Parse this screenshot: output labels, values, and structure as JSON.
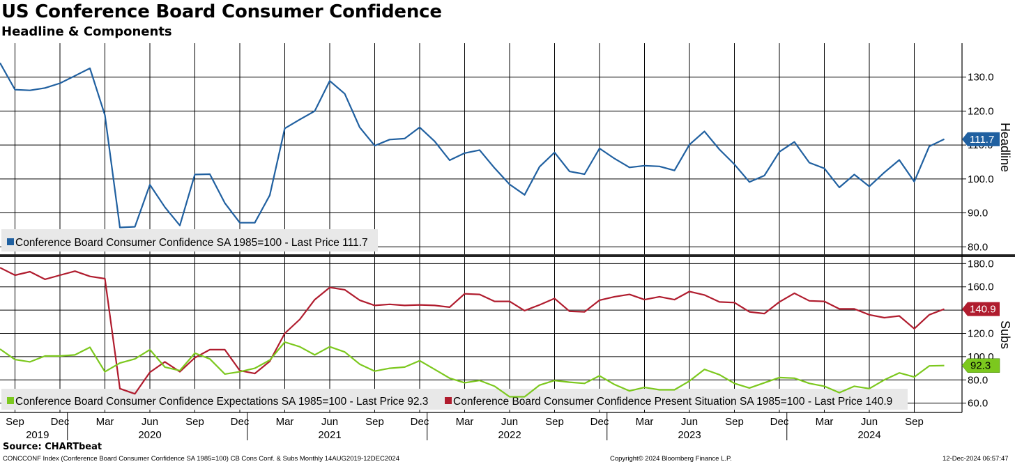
{
  "header": {
    "title": "US Conference Board Consumer Confidence",
    "subtitle": "Headline & Components"
  },
  "footer": {
    "source": "Source: CHARTbeat",
    "index_info": "CONCCONF Index (Conference Board Consumer Confidence SA 1985=100) CB Cons Conf. & Subs  Monthly 14AUG2019-12DEC2024",
    "copyright": "Copyright© 2024 Bloomberg Finance L.P.",
    "timestamp": "12-Dec-2024 06:57:47"
  },
  "colors": {
    "headline": "#2060a0",
    "present": "#b01c2e",
    "expectations": "#7cc81e",
    "grid": "#000000",
    "legend_bg": "#e8e8e8"
  },
  "chart_data": [
    {
      "type": "line",
      "panel": "top",
      "axis_title": "Headline",
      "ylim": [
        78,
        140
      ],
      "yticks": [
        80,
        90,
        100,
        110,
        120,
        130
      ],
      "ytick_labels": [
        "80.0",
        "90.0",
        "100.0",
        "110.0",
        "120.0",
        "130.0"
      ],
      "legend": "Conference Board Consumer Confidence SA 1985=100 - Last Price 111.7",
      "last_price_label": "111.7",
      "series": [
        {
          "name": "Conference Board Consumer Confidence SA 1985=100",
          "color": "#2060a0",
          "start": "2019-08",
          "values": [
            134.2,
            126.3,
            126.1,
            126.8,
            128.2,
            130.4,
            132.6,
            118.8,
            85.7,
            85.9,
            98.3,
            91.7,
            86.3,
            101.3,
            101.4,
            92.9,
            87.1,
            87.1,
            95.2,
            114.9,
            117.5,
            120.0,
            128.9,
            125.1,
            115.2,
            109.8,
            111.6,
            111.9,
            115.2,
            111.1,
            105.5,
            107.6,
            108.5,
            103.2,
            98.4,
            95.3,
            103.6,
            107.8,
            102.2,
            101.4,
            109.0,
            106.0,
            103.4,
            103.9,
            103.7,
            102.5,
            110.1,
            114.0,
            108.7,
            104.3,
            99.1,
            101.0,
            108.0,
            110.9,
            104.8,
            103.1,
            97.5,
            101.3,
            97.8,
            101.9,
            105.6,
            99.2,
            109.6,
            111.7
          ]
        }
      ]
    },
    {
      "type": "line",
      "panel": "bottom",
      "axis_title": "Subs",
      "ylim": [
        52,
        185
      ],
      "yticks": [
        60,
        80,
        100,
        120,
        140,
        160,
        180
      ],
      "ytick_labels": [
        "60.0",
        "80.0",
        "100.0",
        "120.0",
        "140.0",
        "160.0",
        "180.0"
      ],
      "legend": [
        "Conference Board Consumer Confidence Expectations SA 1985=100 - Last Price 92.3",
        "Conference Board Consumer Confidence Present Situation SA 1985=100 - Last Price 140.9"
      ],
      "last_price_labels": [
        "140.9",
        "92.3"
      ],
      "series": [
        {
          "name": "Conference Board Consumer Confidence Present Situation SA 1985=100",
          "color": "#b01c2e",
          "start": "2019-08",
          "values": [
            176.5,
            170.0,
            173.0,
            166.5,
            170.0,
            173.5,
            169.0,
            167.0,
            72.5,
            68.0,
            86.5,
            95.5,
            87.0,
            99.0,
            106.0,
            106.0,
            88.0,
            85.5,
            96.0,
            120.0,
            132.0,
            149.0,
            159.5,
            157.5,
            148.5,
            144.0,
            145.0,
            144.0,
            144.5,
            144.0,
            142.5,
            154.0,
            153.5,
            147.5,
            147.5,
            139.5,
            144.5,
            150.0,
            139.0,
            138.5,
            148.5,
            151.5,
            153.5,
            149.0,
            151.5,
            149.0,
            156.0,
            153.0,
            147.0,
            146.5,
            138.5,
            137.0,
            147.0,
            154.5,
            148.0,
            147.5,
            141.0,
            141.0,
            136.0,
            133.5,
            135.0,
            124.0,
            136.0,
            140.9
          ]
        },
        {
          "name": "Conference Board Consumer Confidence Expectations SA 1985=100",
          "color": "#7cc81e",
          "start": "2019-08",
          "values": [
            106.5,
            97.5,
            95.5,
            100.5,
            100.5,
            101.5,
            108.0,
            87.0,
            94.5,
            98.0,
            106.0,
            91.0,
            88.0,
            103.0,
            98.0,
            85.0,
            87.0,
            90.0,
            97.0,
            112.5,
            108.5,
            101.5,
            108.5,
            104.0,
            93.5,
            87.5,
            90.0,
            91.0,
            96.5,
            89.0,
            81.5,
            77.5,
            79.5,
            74.5,
            65.5,
            65.5,
            75.5,
            79.5,
            78.0,
            77.0,
            83.5,
            76.0,
            70.5,
            73.5,
            71.5,
            71.5,
            79.0,
            89.0,
            84.5,
            77.0,
            73.0,
            77.5,
            82.0,
            81.5,
            77.0,
            74.5,
            69.0,
            74.5,
            72.5,
            80.0,
            86.0,
            82.5,
            92.0,
            92.3
          ]
        }
      ]
    }
  ],
  "x_axis": {
    "month_labels": [
      "Sep",
      "Dec",
      "Mar",
      "Jun",
      "Sep",
      "Dec",
      "Mar",
      "Jun",
      "Sep",
      "Dec",
      "Mar",
      "Jun",
      "Sep",
      "Dec",
      "Mar",
      "Jun",
      "Sep",
      "Dec",
      "Mar",
      "Jun",
      "Sep"
    ],
    "month_label_indices": [
      1,
      4,
      7,
      10,
      13,
      16,
      19,
      22,
      25,
      28,
      31,
      34,
      37,
      40,
      43,
      46,
      49,
      52,
      55,
      58,
      61
    ],
    "year_labels": [
      "2019",
      "2020",
      "2021",
      "2022",
      "2023",
      "2024"
    ],
    "year_label_indices": [
      2.5,
      10,
      22,
      34,
      46,
      58
    ]
  }
}
